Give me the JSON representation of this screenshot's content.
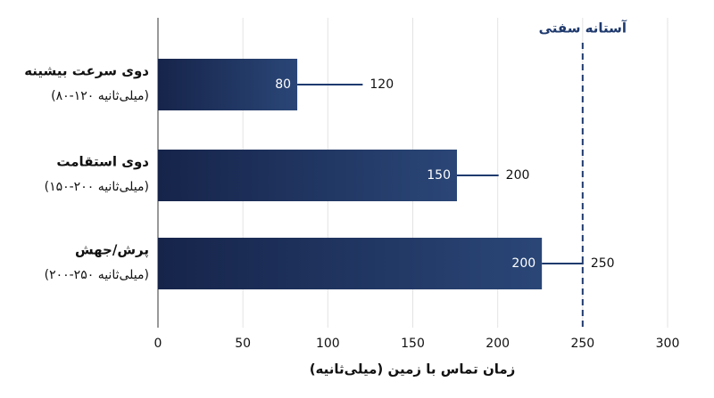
{
  "chart_data": {
    "type": "range-bar",
    "categories": [
      "دوی سرعت بیشینه",
      "دوی استقامت",
      "پرش/جهش"
    ],
    "category_notes": [
      "(۸۰-۱۲۰ میلی‌ثانیه)",
      "(۱۵۰-۲۰۰ میلی‌ثانیه)",
      "(۲۰۰-۲۵۰ میلی‌ثانیه)"
    ],
    "values": [
      82,
      176,
      226
    ],
    "low": [
      80,
      150,
      200
    ],
    "high": [
      120,
      200,
      250
    ],
    "color": "#1d3160",
    "whisker_color": "#1f3a6e",
    "xlabel": "زمان تماس با زمین (میلی‌ثانیه)",
    "xlim": [
      0,
      300
    ],
    "xticks": [
      0,
      50,
      100,
      150,
      200,
      250,
      300
    ],
    "grid": true,
    "threshold": {
      "value": 250,
      "label": "آستانه سفتی",
      "color": "#1f3a6e"
    }
  }
}
